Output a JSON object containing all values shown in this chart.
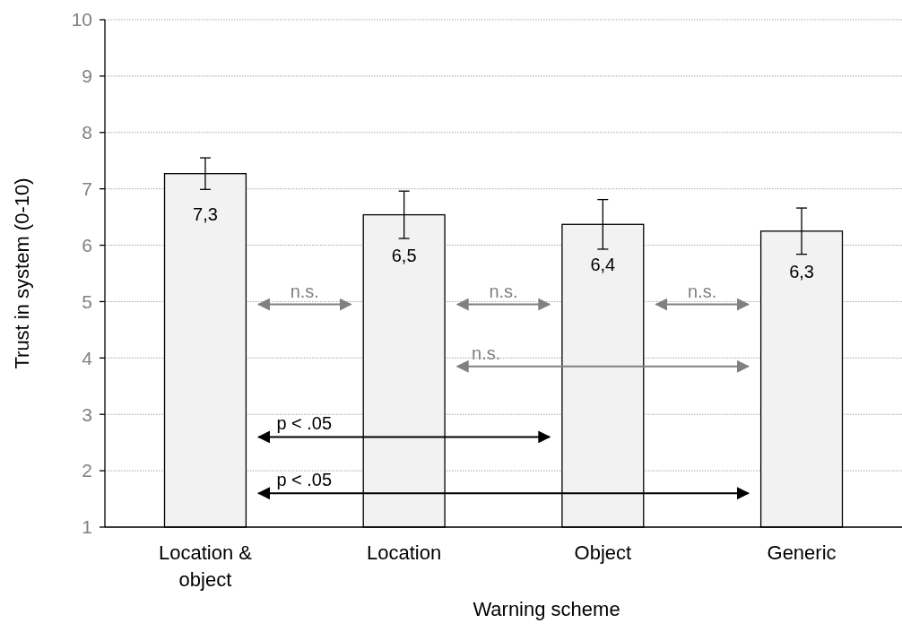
{
  "chart_data": {
    "type": "bar",
    "xlabel": "Warning scheme",
    "ylabel": "Trust in system (0-10)",
    "categories": [
      "Location & object",
      "Location",
      "Object",
      "Generic"
    ],
    "values": [
      7.27,
      6.54,
      6.37,
      6.25
    ],
    "value_labels": [
      "7,3",
      "6,5",
      "6,4",
      "6,3"
    ],
    "errors": [
      0.28,
      0.42,
      0.44,
      0.41
    ],
    "color": "#f2f2f2",
    "ylim": [
      1,
      10
    ],
    "yticks": [
      1,
      2,
      3,
      4,
      5,
      6,
      7,
      8,
      9,
      10
    ],
    "grid": "y",
    "annotations": [
      "n.s.",
      "n.s.",
      "n.s.",
      "n.s.",
      "p < .05",
      "p < .05"
    ]
  }
}
